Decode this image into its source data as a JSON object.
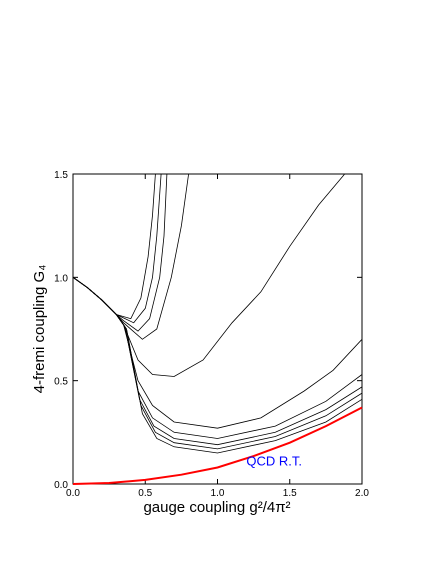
{
  "chart_data": {
    "type": "line",
    "xlabel": "gauge coupling  g²/4π²",
    "ylabel": "4-fremi coupling G₄",
    "annotation": {
      "text": "QCD R.T.",
      "x": 1.2,
      "y": 0.09,
      "color": "#0000ff"
    },
    "xlim": [
      0,
      2
    ],
    "ylim": [
      0,
      1.5
    ],
    "xticks": [
      {
        "value": 0,
        "label": "0.0"
      },
      {
        "value": 0.5,
        "label": "0.5"
      },
      {
        "value": 1,
        "label": "1.0"
      },
      {
        "value": 1.5,
        "label": "1.5"
      },
      {
        "value": 2,
        "label": "2.0"
      }
    ],
    "yticks": [
      {
        "value": 0,
        "label": "0.0"
      },
      {
        "value": 0.5,
        "label": "0.5"
      },
      {
        "value": 1,
        "label": "1.0"
      },
      {
        "value": 1.5,
        "label": "1.5"
      }
    ],
    "series": [
      {
        "color": "#000000",
        "x": [
          0,
          0.1,
          0.2,
          0.3,
          0.4,
          0.47,
          0.52,
          0.55,
          0.57
        ],
        "values": [
          1.0,
          0.95,
          0.89,
          0.82,
          0.8,
          0.9,
          1.1,
          1.3,
          1.5
        ]
      },
      {
        "color": "#000000",
        "x": [
          0,
          0.1,
          0.2,
          0.3,
          0.42,
          0.5,
          0.55,
          0.58,
          0.61
        ],
        "values": [
          1.0,
          0.95,
          0.89,
          0.82,
          0.78,
          0.85,
          1.0,
          1.2,
          1.5
        ]
      },
      {
        "color": "#000000",
        "x": [
          0,
          0.1,
          0.2,
          0.3,
          0.35,
          0.45,
          0.53,
          0.6,
          0.63,
          0.65
        ],
        "values": [
          1.0,
          0.95,
          0.89,
          0.82,
          0.79,
          0.74,
          0.8,
          1.0,
          1.2,
          1.5
        ]
      },
      {
        "color": "#000000",
        "x": [
          0,
          0.1,
          0.2,
          0.3,
          0.35,
          0.48,
          0.58,
          0.68,
          0.75,
          0.8
        ],
        "values": [
          1.0,
          0.95,
          0.89,
          0.82,
          0.78,
          0.7,
          0.75,
          1.0,
          1.25,
          1.5
        ]
      },
      {
        "color": "#000000",
        "x": [
          0,
          0.1,
          0.2,
          0.3,
          0.35,
          0.45,
          0.55,
          0.7,
          0.9,
          1.1,
          1.3,
          1.5,
          1.7,
          1.88
        ],
        "values": [
          1.0,
          0.95,
          0.89,
          0.82,
          0.77,
          0.6,
          0.53,
          0.52,
          0.6,
          0.78,
          0.93,
          1.15,
          1.35,
          1.5
        ]
      },
      {
        "color": "#000000",
        "x": [
          0,
          0.1,
          0.2,
          0.3,
          0.35,
          0.45,
          0.55,
          0.7,
          1.0,
          1.3,
          1.6,
          1.8,
          2.0
        ],
        "values": [
          1.0,
          0.95,
          0.89,
          0.82,
          0.77,
          0.5,
          0.38,
          0.3,
          0.27,
          0.32,
          0.45,
          0.55,
          0.7
        ]
      },
      {
        "color": "#000000",
        "x": [
          0,
          0.1,
          0.2,
          0.3,
          0.36,
          0.45,
          0.55,
          0.7,
          1.0,
          1.4,
          1.75,
          2.0
        ],
        "values": [
          1.0,
          0.95,
          0.89,
          0.82,
          0.76,
          0.45,
          0.32,
          0.25,
          0.22,
          0.28,
          0.4,
          0.53
        ]
      },
      {
        "color": "#000000",
        "x": [
          0,
          0.1,
          0.2,
          0.3,
          0.36,
          0.46,
          0.56,
          0.7,
          1.0,
          1.4,
          1.75,
          2.0
        ],
        "values": [
          1.0,
          0.95,
          0.89,
          0.82,
          0.76,
          0.41,
          0.28,
          0.22,
          0.19,
          0.25,
          0.36,
          0.47
        ]
      },
      {
        "color": "#000000",
        "x": [
          0,
          0.1,
          0.2,
          0.3,
          0.37,
          0.47,
          0.57,
          0.7,
          1.0,
          1.4,
          1.75,
          2.0
        ],
        "values": [
          1.0,
          0.95,
          0.89,
          0.82,
          0.75,
          0.38,
          0.25,
          0.2,
          0.17,
          0.23,
          0.33,
          0.44
        ]
      },
      {
        "color": "#000000",
        "x": [
          0,
          0.1,
          0.2,
          0.3,
          0.37,
          0.48,
          0.58,
          0.7,
          1.0,
          1.4,
          1.75,
          2.0
        ],
        "values": [
          1.0,
          0.95,
          0.89,
          0.82,
          0.75,
          0.34,
          0.22,
          0.18,
          0.15,
          0.21,
          0.3,
          0.41
        ]
      },
      {
        "color": "#ff0000",
        "x": [
          0,
          0.25,
          0.5,
          0.75,
          1.0,
          1.25,
          1.5,
          1.75,
          2.0
        ],
        "values": [
          0,
          0.005,
          0.02,
          0.045,
          0.08,
          0.135,
          0.2,
          0.28,
          0.37
        ]
      }
    ]
  }
}
